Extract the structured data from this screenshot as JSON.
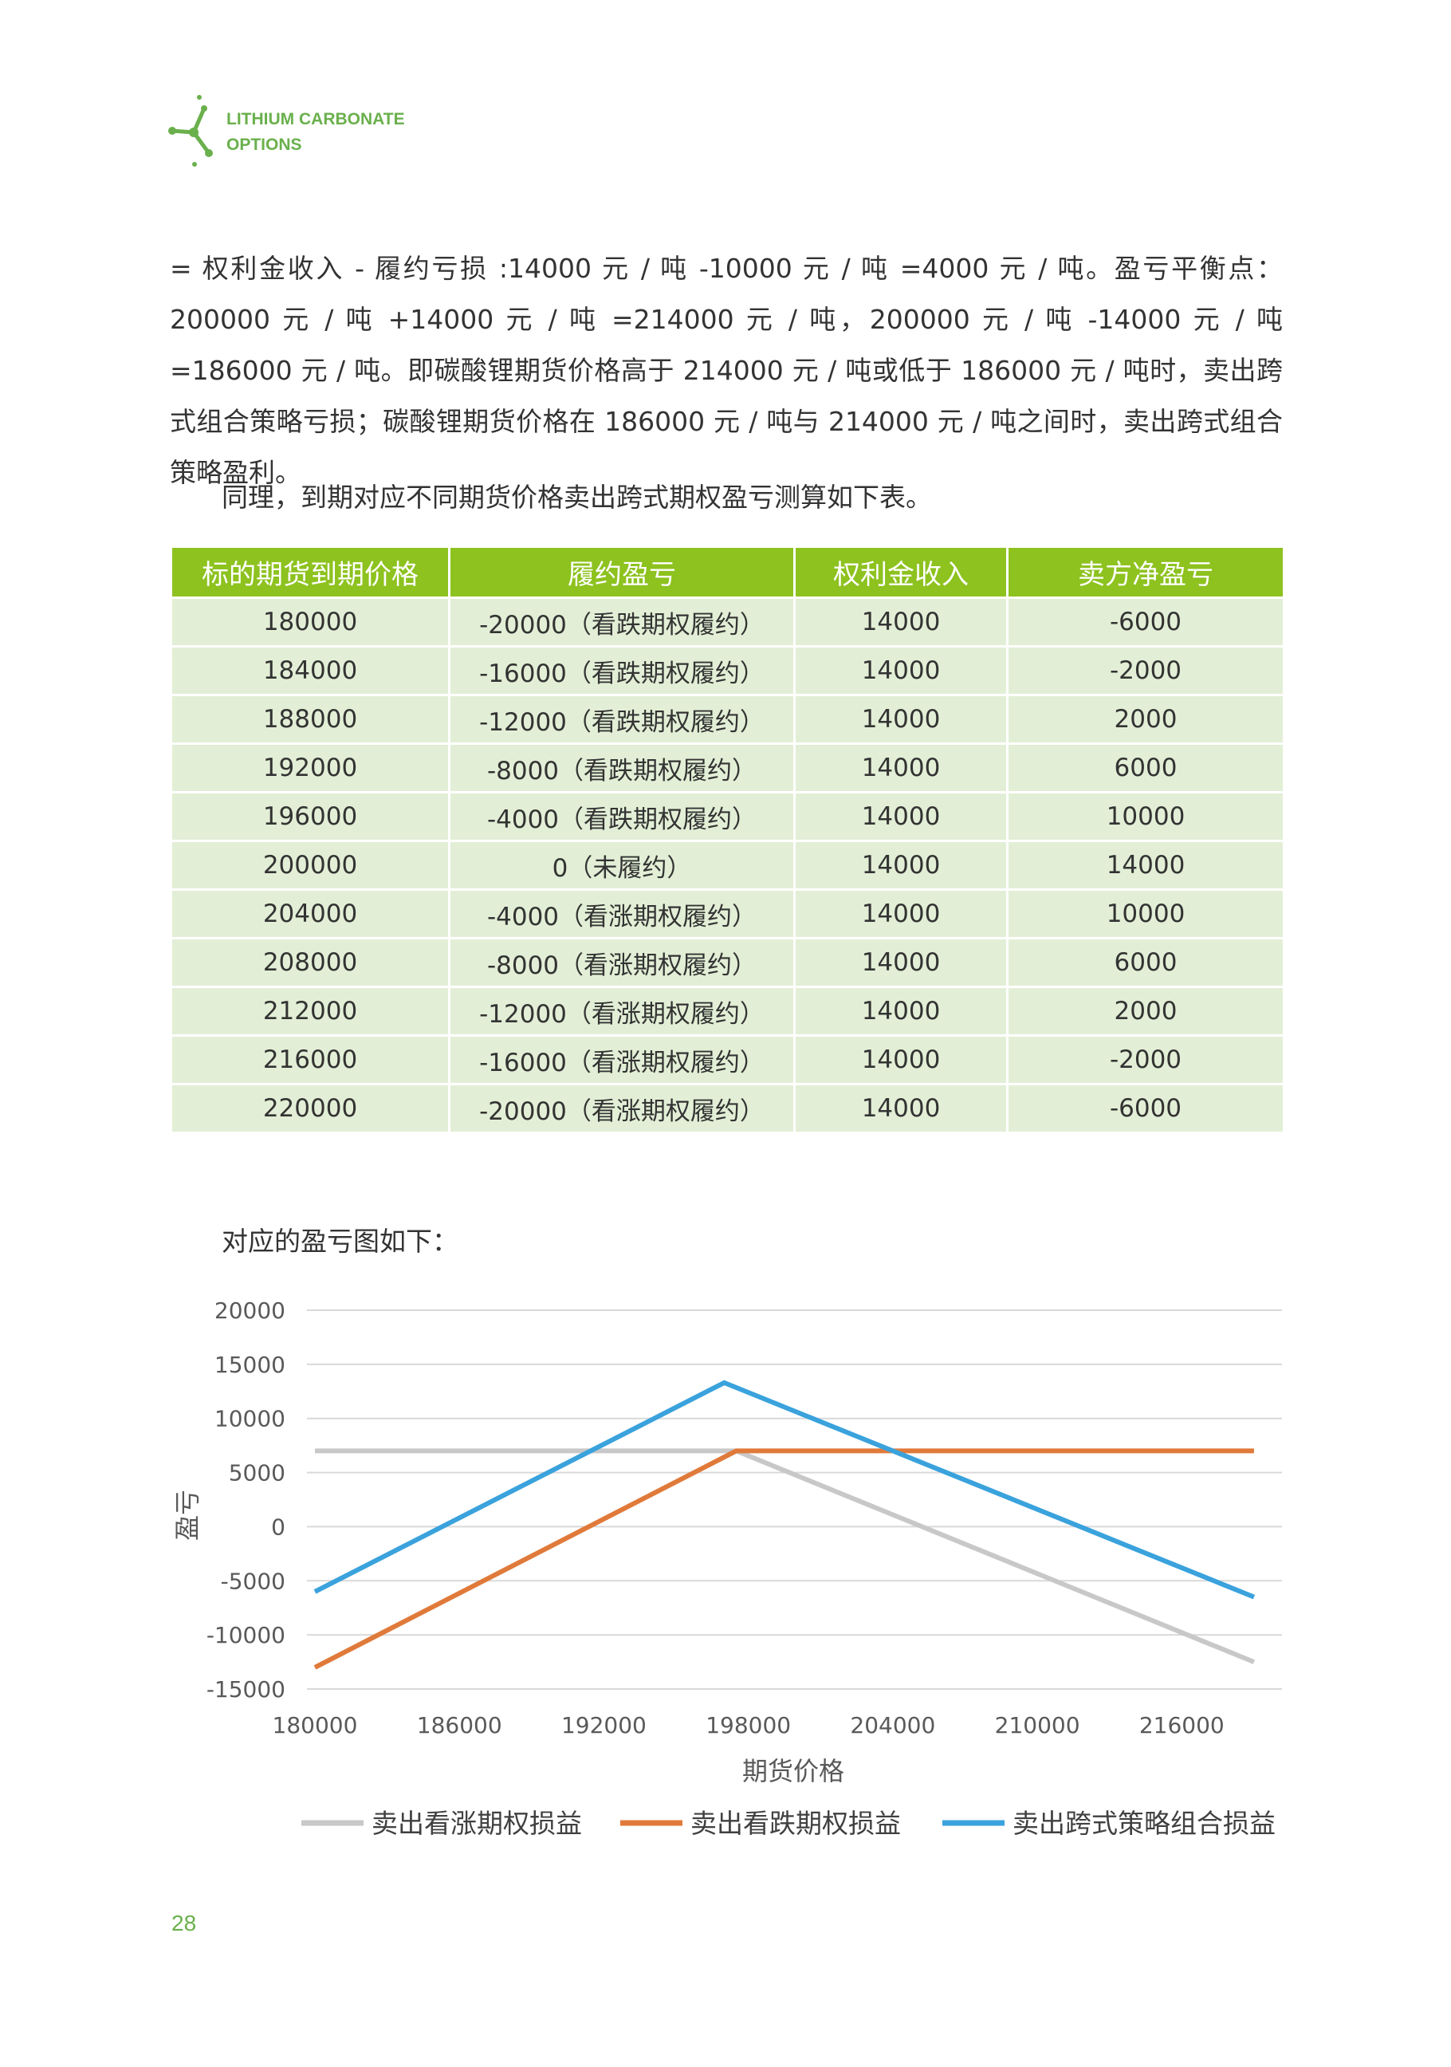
{
  "header": {
    "brand_line1": "LITHIUM CARBONATE",
    "brand_line2": "OPTIONS",
    "accent_color": "#6ab04c"
  },
  "body": {
    "paragraph1": "= 权利金收入 - 履约亏损 :14000 元 / 吨 -10000 元 / 吨 =4000 元 / 吨。盈亏平衡点：200000 元 / 吨 +14000 元 / 吨 =214000 元 / 吨，200000 元 / 吨 -14000 元 / 吨 =186000 元 / 吨。即碳酸锂期货价格高于 214000 元 / 吨或低于 186000 元 / 吨时，卖出跨式组合策略亏损；碳酸锂期货价格在 186000 元 / 吨与 214000 元 / 吨之间时，卖出跨式组合策略盈利。",
    "paragraph2": "同理，到期对应不同期货价格卖出跨式期权盈亏测算如下表。",
    "chart_caption": "对应的盈亏图如下："
  },
  "table": {
    "header_color": "#8dc21f",
    "row_color": "#e2efd6",
    "columns": [
      "标的期货到期价格",
      "履约盈亏",
      "权利金收入",
      "卖方净盈亏"
    ],
    "rows": [
      [
        "180000",
        "-20000（看跌期权履约）",
        "14000",
        "-6000"
      ],
      [
        "184000",
        "-16000（看跌期权履约）",
        "14000",
        "-2000"
      ],
      [
        "188000",
        "-12000（看跌期权履约）",
        "14000",
        "2000"
      ],
      [
        "192000",
        "-8000（看跌期权履约）",
        "14000",
        "6000"
      ],
      [
        "196000",
        "-4000（看跌期权履约）",
        "14000",
        "10000"
      ],
      [
        "200000",
        "0（未履约）",
        "14000",
        "14000"
      ],
      [
        "204000",
        "-4000（看涨期权履约）",
        "14000",
        "10000"
      ],
      [
        "208000",
        "-8000（看涨期权履约）",
        "14000",
        "6000"
      ],
      [
        "212000",
        "-12000（看涨期权履约）",
        "14000",
        "2000"
      ],
      [
        "216000",
        "-16000（看涨期权履约）",
        "14000",
        "-2000"
      ],
      [
        "220000",
        "-20000（看涨期权履约）",
        "14000",
        "-6000"
      ]
    ]
  },
  "chart_data": {
    "type": "line",
    "title": "",
    "xlabel": "期货价格",
    "ylabel": "盈亏",
    "xlim": [
      180000,
      219500
    ],
    "ylim": [
      -15000,
      20000
    ],
    "x_ticks": [
      180000,
      186000,
      192000,
      198000,
      204000,
      210000,
      216000
    ],
    "y_ticks": [
      20000,
      15000,
      10000,
      5000,
      0,
      -5000,
      -10000,
      -15000
    ],
    "grid": true,
    "legend_position": "bottom",
    "series": [
      {
        "name": "卖出看涨期权损益",
        "color": "#c8c8c8",
        "points": [
          [
            180000,
            7000
          ],
          [
            197500,
            7000
          ],
          [
            219000,
            -12500
          ]
        ]
      },
      {
        "name": "卖出看跌期权损益",
        "color": "#e07a3a",
        "points": [
          [
            180000,
            -13000
          ],
          [
            197500,
            7000
          ],
          [
            219000,
            7000
          ]
        ]
      },
      {
        "name": "卖出跨式策略组合损益",
        "color": "#3aa2dc",
        "points": [
          [
            180000,
            -6000
          ],
          [
            197000,
            13300
          ],
          [
            219000,
            -6500
          ]
        ]
      }
    ]
  },
  "footer": {
    "page_number": "28"
  }
}
